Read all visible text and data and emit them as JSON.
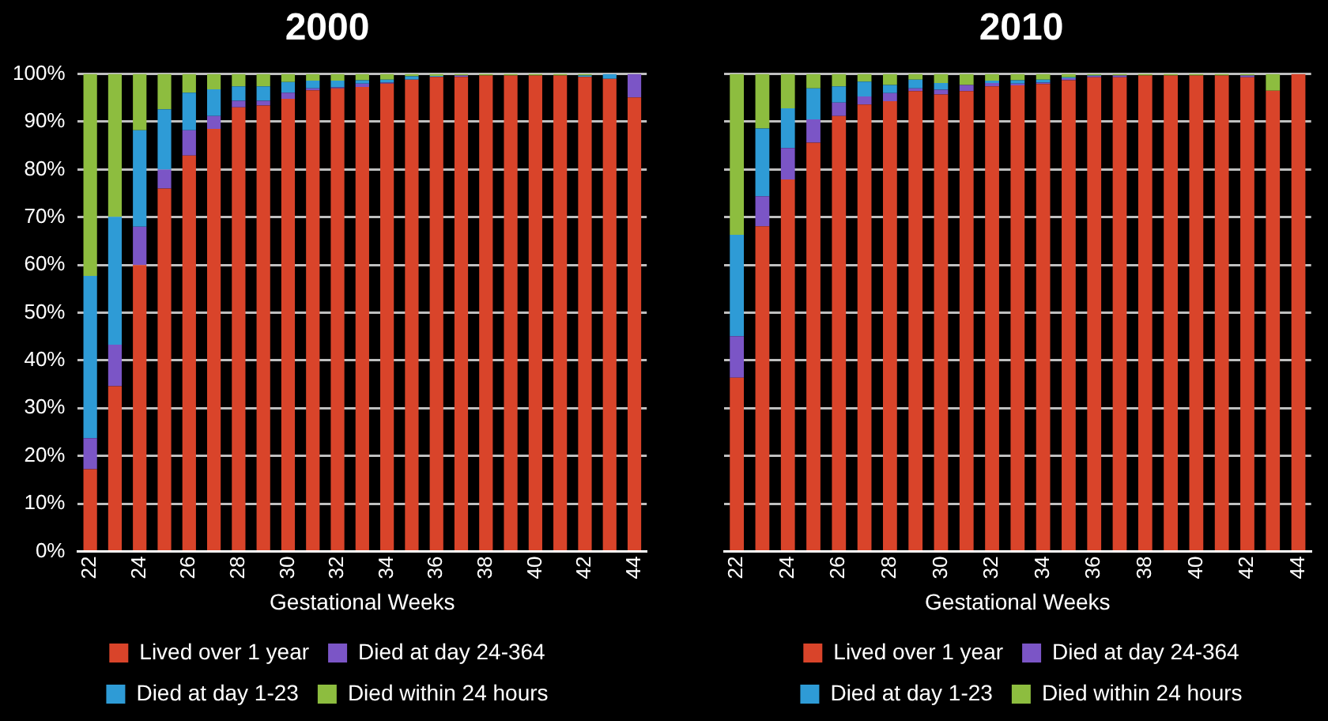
{
  "chart_data": [
    {
      "type": "bar",
      "title": "2000",
      "xlabel": "Gestational Weeks",
      "stacked": true,
      "grid": "y",
      "legend": "bottom",
      "categories": [
        "22",
        null,
        "24",
        null,
        "26",
        null,
        "28",
        null,
        "30",
        null,
        "32",
        null,
        "34",
        null,
        "36",
        null,
        "38",
        null,
        "40",
        null,
        "42",
        null,
        "44"
      ],
      "ylim": [
        0,
        100
      ],
      "yticks": [
        {
          "value": 0,
          "label": "0%"
        },
        {
          "value": 10,
          "label": "10%"
        },
        {
          "value": 20,
          "label": "20%"
        },
        {
          "value": 30,
          "label": "30%"
        },
        {
          "value": 40,
          "label": "40%"
        },
        {
          "value": 50,
          "label": "50%"
        },
        {
          "value": 60,
          "label": "60%"
        },
        {
          "value": 70,
          "label": "70%"
        },
        {
          "value": 80,
          "label": "80%"
        },
        {
          "value": 90,
          "label": "90%"
        },
        {
          "value": 100,
          "label": "100%"
        }
      ],
      "series": [
        {
          "name": "Lived over 1 year",
          "color": "#d9442a",
          "values": [
            17.2,
            34.6,
            60.0,
            76.0,
            82.9,
            88.5,
            93.0,
            93.4,
            94.8,
            96.6,
            97.0,
            97.3,
            98.0,
            98.8,
            99.4,
            99.4,
            99.7,
            99.7,
            99.7,
            99.7,
            99.4,
            99.0,
            95.1
          ]
        },
        {
          "name": "Died at day 24-364",
          "color": "#7b55c6",
          "values": [
            6.5,
            8.7,
            8.0,
            4.0,
            5.3,
            2.7,
            1.4,
            1.0,
            1.3,
            0.4,
            0.2,
            0.7,
            0.2,
            0,
            0,
            0.3,
            0,
            0,
            0,
            0,
            0,
            0,
            4.9
          ]
        },
        {
          "name": "Died at day 1-23",
          "color": "#2e9bd6",
          "values": [
            34.0,
            26.8,
            20.2,
            12.6,
            7.9,
            5.6,
            3.0,
            3.0,
            2.2,
            1.6,
            1.4,
            0.7,
            0.6,
            0.7,
            0.2,
            0,
            0,
            0,
            0,
            0,
            0.3,
            1.0,
            0
          ]
        },
        {
          "name": "Died within 24 hours",
          "color": "#8dbd3f",
          "values": [
            42.3,
            29.9,
            11.8,
            7.4,
            3.9,
            3.2,
            2.6,
            2.6,
            1.7,
            1.4,
            1.4,
            1.3,
            1.2,
            0.5,
            0.4,
            0.3,
            0.3,
            0.3,
            0.3,
            0.3,
            0.3,
            0,
            0
          ]
        }
      ]
    },
    {
      "type": "bar",
      "title": "2010",
      "xlabel": "Gestational Weeks",
      "stacked": true,
      "grid": "y",
      "legend": "bottom",
      "tick_labels": "x",
      "categories": [
        "22",
        null,
        "24",
        null,
        "26",
        null,
        "28",
        null,
        "30",
        null,
        "32",
        null,
        "34",
        null,
        "36",
        null,
        "38",
        null,
        "40",
        null,
        "42",
        null,
        "44"
      ],
      "ylim": [
        0,
        100
      ],
      "yticks": [
        0,
        10,
        20,
        30,
        40,
        50,
        60,
        70,
        80,
        90,
        100
      ],
      "series": [
        {
          "name": "Lived over 1 year",
          "color": "#d9442a",
          "values": [
            36.4,
            68.1,
            77.9,
            85.6,
            91.2,
            93.6,
            94.3,
            96.4,
            95.7,
            96.4,
            97.4,
            97.6,
            97.9,
            98.7,
            99.3,
            99.3,
            99.7,
            99.7,
            99.7,
            99.7,
            99.3,
            96.5,
            100
          ]
        },
        {
          "name": "Died at day 24-364",
          "color": "#7b55c6",
          "values": [
            8.7,
            6.3,
            6.6,
            4.9,
            2.8,
            1.7,
            1.7,
            0.6,
            1.0,
            1.3,
            0.7,
            0.4,
            0.3,
            0.4,
            0.3,
            0.4,
            0,
            0,
            0,
            0,
            0.4,
            0,
            0
          ]
        },
        {
          "name": "Died at day 1-23",
          "color": "#2e9bd6",
          "values": [
            21.2,
            14.2,
            8.3,
            6.5,
            3.4,
            3.1,
            1.7,
            1.8,
            1.4,
            0,
            0.5,
            0.7,
            0.6,
            0.2,
            0.1,
            0,
            0,
            0,
            0,
            0,
            0,
            0,
            0
          ]
        },
        {
          "name": "Died within 24 hours",
          "color": "#8dbd3f",
          "values": [
            33.7,
            11.4,
            7.2,
            3.0,
            2.6,
            1.6,
            2.3,
            1.2,
            1.9,
            2.3,
            1.4,
            1.3,
            1.2,
            0.7,
            0.3,
            0.3,
            0.3,
            0.3,
            0.3,
            0.3,
            0.3,
            3.5,
            0
          ]
        }
      ]
    }
  ]
}
